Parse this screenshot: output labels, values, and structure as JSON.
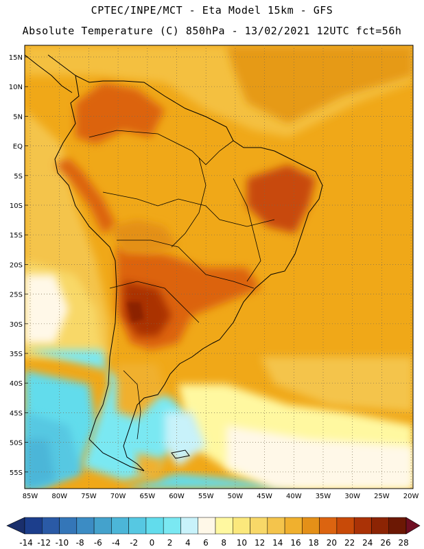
{
  "header": {
    "line1": "CPTEC/INPE/MCT -  Eta Model 15km - GFS",
    "line2": "Absolute Temperature (C) 850hPa - 13/02/2021 12UTC fct=56h"
  },
  "map": {
    "lat_labels": [
      "15N",
      "10N",
      "5N",
      "EQ",
      "5S",
      "10S",
      "15S",
      "20S",
      "25S",
      "30S",
      "35S",
      "40S",
      "45S",
      "50S",
      "55S"
    ],
    "lon_labels": [
      "85W",
      "80W",
      "75W",
      "70W",
      "65W",
      "60W",
      "55W",
      "50W",
      "45W",
      "40W",
      "35W",
      "30W",
      "25W",
      "20W"
    ],
    "background_color": "#f0a818"
  },
  "colorbar": {
    "ticks": [
      "-14",
      "-12",
      "-10",
      "-8",
      "-6",
      "-4",
      "-2",
      "0",
      "2",
      "4",
      "6",
      "8",
      "10",
      "12",
      "14",
      "16",
      "18",
      "20",
      "22",
      "24",
      "26",
      "28"
    ],
    "colors": [
      "#1c3e8c",
      "#2a5aa6",
      "#3476b8",
      "#3c8cc4",
      "#44a2cc",
      "#4cb6d8",
      "#56c8e2",
      "#62dcec",
      "#7ae8f2",
      "#c8f2fa",
      "#fff8e8",
      "#fff8a0",
      "#fbe87c",
      "#f8d868",
      "#f4c44c",
      "#f0b02e",
      "#e49018",
      "#dc6410",
      "#c84a08",
      "#aa3206",
      "#8c2404",
      "#6c1804"
    ],
    "under_color": "#1a2f6c",
    "over_color": "#6e0e22"
  }
}
